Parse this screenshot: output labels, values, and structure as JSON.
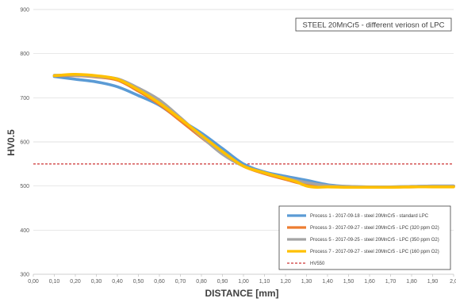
{
  "chart_data": {
    "type": "line",
    "title": "",
    "annotation": "STEEL 20MnCr5 - different veriosn of LPC",
    "xlabel": "DISTANCE [mm]",
    "ylabel": "HV0.5",
    "xlim": [
      0,
      2.0
    ],
    "ylim": [
      300,
      900
    ],
    "x_ticks": [
      "0,00",
      "0,10",
      "0,20",
      "0,30",
      "0,40",
      "0,50",
      "0,60",
      "0,70",
      "0,80",
      "0,90",
      "1,00",
      "1,10",
      "1,20",
      "1,30",
      "1,40",
      "1,50",
      "1,60",
      "1,70",
      "1,80",
      "1,90",
      "2,0"
    ],
    "y_ticks": [
      "300",
      "400",
      "500",
      "600",
      "700",
      "800",
      "900"
    ],
    "grid": "horizontal",
    "legend_position": "bottom-right",
    "series": [
      {
        "name": "Process 1 - 2017-09-18 - steel 20MnCr5 - standard LPC",
        "color": "#5B9BD5",
        "points": [
          [
            0.1,
            748
          ],
          [
            0.2,
            742
          ],
          [
            0.3,
            736
          ],
          [
            0.4,
            725
          ],
          [
            0.5,
            705
          ],
          [
            0.6,
            683
          ],
          [
            0.7,
            650
          ],
          [
            0.8,
            620
          ],
          [
            0.9,
            585
          ],
          [
            1.0,
            550
          ],
          [
            1.1,
            532
          ],
          [
            1.2,
            522
          ],
          [
            1.3,
            513
          ],
          [
            1.4,
            503
          ],
          [
            1.5,
            499
          ],
          [
            1.6,
            498
          ],
          [
            1.7,
            498
          ],
          [
            1.8,
            499
          ],
          [
            1.9,
            500
          ],
          [
            2.0,
            500
          ]
        ]
      },
      {
        "name": "Process 3 - 2017-09-27 - steel 20MnCr5 - LPC (320 ppm O2)",
        "color": "#ED7D31",
        "points": [
          [
            0.1,
            750
          ],
          [
            0.2,
            750
          ],
          [
            0.3,
            747
          ],
          [
            0.4,
            740
          ],
          [
            0.5,
            715
          ],
          [
            0.6,
            685
          ],
          [
            0.7,
            648
          ],
          [
            0.8,
            610
          ],
          [
            0.9,
            575
          ],
          [
            1.0,
            545
          ],
          [
            1.1,
            528
          ],
          [
            1.2,
            515
          ],
          [
            1.3,
            503
          ],
          [
            1.4,
            499
          ],
          [
            1.5,
            498
          ],
          [
            1.6,
            498
          ],
          [
            1.7,
            498
          ],
          [
            1.8,
            498
          ],
          [
            1.9,
            499
          ],
          [
            2.0,
            500
          ]
        ]
      },
      {
        "name": "Process 5 - 2017-09-25 - steel 20MnCr5 - LPC (350 ppm O2)",
        "color": "#A5A5A5",
        "points": [
          [
            0.1,
            751
          ],
          [
            0.2,
            751
          ],
          [
            0.3,
            748
          ],
          [
            0.4,
            743
          ],
          [
            0.5,
            722
          ],
          [
            0.6,
            695
          ],
          [
            0.7,
            655
          ],
          [
            0.8,
            612
          ],
          [
            0.9,
            572
          ],
          [
            1.0,
            545
          ],
          [
            1.1,
            530
          ],
          [
            1.2,
            518
          ],
          [
            1.3,
            508
          ],
          [
            1.4,
            501
          ],
          [
            1.5,
            499
          ],
          [
            1.6,
            498
          ],
          [
            1.7,
            498
          ],
          [
            1.8,
            499
          ],
          [
            1.9,
            500
          ],
          [
            2.0,
            500
          ]
        ]
      },
      {
        "name": "Process 7 - 2017-09-27 - steel 20MnCr5 - LPC (160 ppm O2)",
        "color": "#FFC000",
        "points": [
          [
            0.1,
            750
          ],
          [
            0.15,
            752
          ],
          [
            0.2,
            753
          ],
          [
            0.3,
            750
          ],
          [
            0.4,
            742
          ],
          [
            0.5,
            718
          ],
          [
            0.6,
            688
          ],
          [
            0.7,
            652
          ],
          [
            0.8,
            615
          ],
          [
            0.9,
            578
          ],
          [
            1.0,
            545
          ],
          [
            1.1,
            530
          ],
          [
            1.2,
            517
          ],
          [
            1.25,
            510
          ],
          [
            1.3,
            500
          ],
          [
            1.35,
            497
          ],
          [
            1.4,
            498
          ],
          [
            1.5,
            497
          ],
          [
            1.6,
            497
          ],
          [
            1.7,
            497
          ],
          [
            1.8,
            498
          ],
          [
            1.9,
            498
          ],
          [
            2.0,
            498
          ]
        ]
      }
    ],
    "reference_line": {
      "name": "HV550",
      "value": 550,
      "color": "#C00000"
    }
  }
}
